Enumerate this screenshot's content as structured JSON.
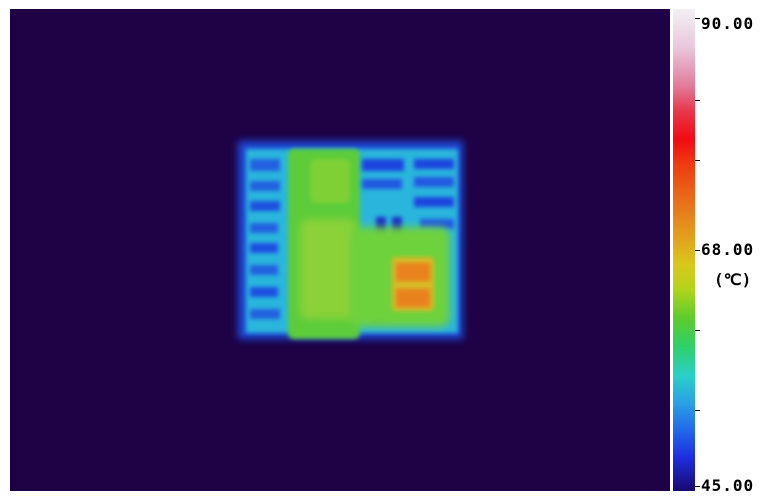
{
  "colors": {
    "background": "#1e0245",
    "hot": "#e8821e",
    "warm": "#c8d41e",
    "mid": "#6ed23c",
    "cool": "#2ad0c8",
    "cold": "#1e4ee0"
  },
  "scale": {
    "max_label": "90.00",
    "mid_label": "68.00",
    "min_label": "45.00",
    "unit": "(℃)"
  }
}
